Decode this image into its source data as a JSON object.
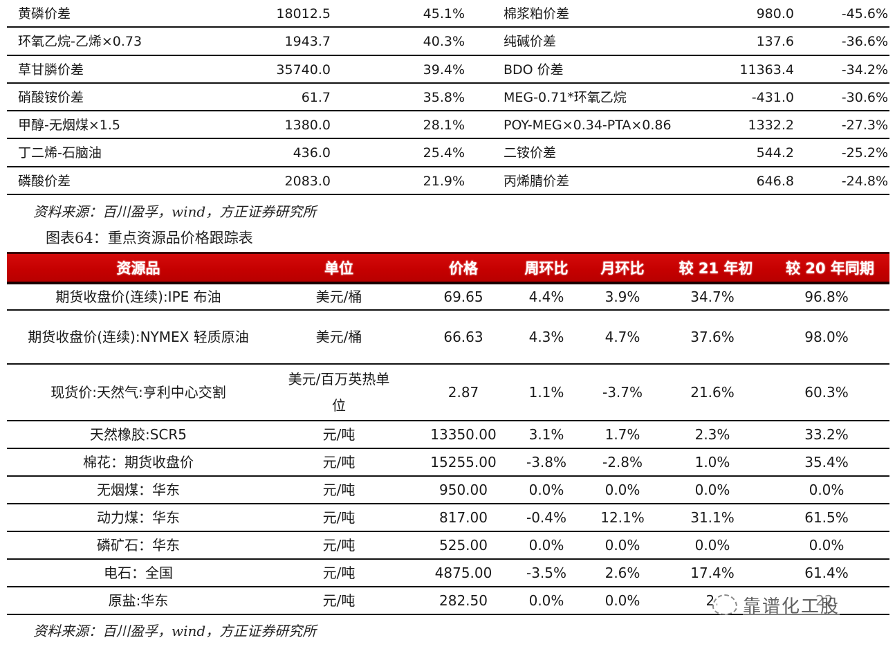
{
  "spread_table": {
    "rows": [
      {
        "left_name": "黄磷价差",
        "left_value": "18012.5",
        "left_pct": "45.1%",
        "right_name": "棉浆粕价差",
        "right_value": "980.0",
        "right_pct": "-45.6%"
      },
      {
        "left_name": "环氧乙烷-乙烯×0.73",
        "left_value": "1943.7",
        "left_pct": "40.3%",
        "right_name": "纯碱价差",
        "right_value": "137.6",
        "right_pct": "-36.6%"
      },
      {
        "left_name": "草甘膦价差",
        "left_value": "35740.0",
        "left_pct": "39.4%",
        "right_name": "BDO 价差",
        "right_value": "11363.4",
        "right_pct": "-34.2%"
      },
      {
        "left_name": "硝酸铵价差",
        "left_value": "61.7",
        "left_pct": "35.8%",
        "right_name": "MEG-0.71*环氧乙烷",
        "right_value": "-431.0",
        "right_pct": "-30.6%"
      },
      {
        "left_name": "甲醇-无烟煤×1.5",
        "left_value": "1380.0",
        "left_pct": "28.1%",
        "right_name": "POY-MEG×0.34-PTA×0.86",
        "right_value": "1332.2",
        "right_pct": "-27.3%"
      },
      {
        "left_name": "丁二烯-石脑油",
        "left_value": "436.0",
        "left_pct": "25.4%",
        "right_name": "二铵价差",
        "right_value": "544.2",
        "right_pct": "-25.2%"
      },
      {
        "left_name": "磷酸价差",
        "left_value": "2083.0",
        "left_pct": "21.9%",
        "right_name": "丙烯腈价差",
        "right_value": "646.8",
        "right_pct": "-24.8%"
      }
    ]
  },
  "source_note_top": "资料来源：百川盈孚，wind，方正证券研究所",
  "figure_title": "图表64：重点资源品价格跟踪表",
  "resource_table": {
    "header_color": "#c80000",
    "headers": {
      "name": "资源品",
      "unit": "单位",
      "price": "价格",
      "wow": "周环比",
      "mom": "月环比",
      "ytd": "较 21 年初",
      "yoy": "较 20 年同期"
    },
    "rows": [
      {
        "name": "期货收盘价(连续):IPE 布油",
        "unit": "美元/桶",
        "price": "69.65",
        "wow": "4.4%",
        "mom": "3.9%",
        "ytd": "34.7%",
        "yoy": "96.8%"
      },
      {
        "name": "期货收盘价(连续):NYMEX 轻质原油",
        "unit": "美元/桶",
        "price": "66.63",
        "wow": "4.3%",
        "mom": "4.7%",
        "ytd": "37.6%",
        "yoy": "98.0%"
      },
      {
        "name": "现货价:天然气:亨利中心交割",
        "unit": "美元/百万英热单位",
        "price": "2.87",
        "wow": "1.1%",
        "mom": "-3.7%",
        "ytd": "21.6%",
        "yoy": "60.3%"
      },
      {
        "name": "天然橡胶:SCR5",
        "unit": "元/吨",
        "price": "13350.00",
        "wow": "3.1%",
        "mom": "1.7%",
        "ytd": "2.3%",
        "yoy": "33.2%"
      },
      {
        "name": "棉花：期货收盘价",
        "unit": "元/吨",
        "price": "15255.00",
        "wow": "-3.8%",
        "mom": "-2.8%",
        "ytd": "1.0%",
        "yoy": "35.4%"
      },
      {
        "name": "无烟煤：华东",
        "unit": "元/吨",
        "price": "950.00",
        "wow": "0.0%",
        "mom": "0.0%",
        "ytd": "0.0%",
        "yoy": "0.0%"
      },
      {
        "name": "动力煤：华东",
        "unit": "元/吨",
        "price": "817.00",
        "wow": "-0.4%",
        "mom": "12.1%",
        "ytd": "31.1%",
        "yoy": "61.5%"
      },
      {
        "name": "磷矿石：华东",
        "unit": "元/吨",
        "price": "525.00",
        "wow": "0.0%",
        "mom": "0.0%",
        "ytd": "0.0%",
        "yoy": "0.0%"
      },
      {
        "name": "电石：全国",
        "unit": "元/吨",
        "price": "4875.00",
        "wow": "-3.5%",
        "mom": "2.6%",
        "ytd": "17.4%",
        "yoy": "61.4%"
      },
      {
        "name": "原盐:华东",
        "unit": "元/吨",
        "price": "282.50",
        "wow": "0.0%",
        "mom": "0.0%",
        "ytd": "2.",
        "yoy": "22."
      }
    ]
  },
  "source_note_bottom": "资料来源：百川盈孚，wind，方正证券研究所",
  "watermark": {
    "icon": "wechat-icon",
    "text": "靠谱化工股"
  }
}
